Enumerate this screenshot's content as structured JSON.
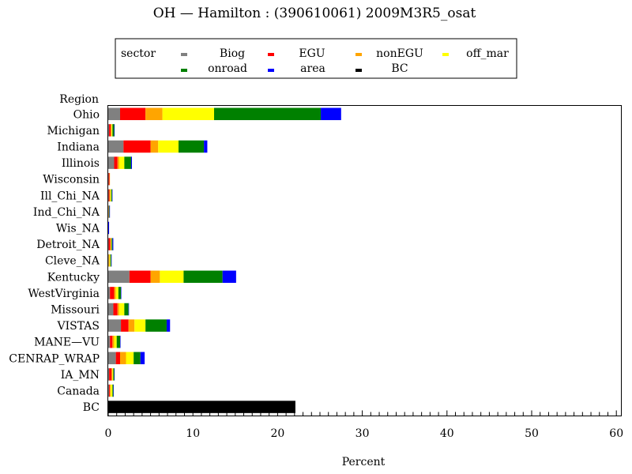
{
  "chart_data": {
    "type": "bar",
    "orientation": "horizontal",
    "stacked": true,
    "title": "OH  —  Hamilton  :  (390610061)  2009M3R5_osat",
    "xlabel": "Percent",
    "ylabel": "Region",
    "xlim": [
      0,
      60
    ],
    "xticks": [
      0,
      10,
      20,
      30,
      40,
      50,
      60
    ],
    "grid": false,
    "legend_title": "sector",
    "legend_position": "top-center",
    "categories": [
      "Ohio",
      "Michigan",
      "Indiana",
      "Illinois",
      "Wisconsin",
      "Ill_Chi_NA",
      "Ind_Chi_NA",
      "Wis_NA",
      "Detroit_NA",
      "Cleve_NA",
      "Kentucky",
      "WestVirginia",
      "Missouri",
      "VISTAS",
      "MANE—VU",
      "CENRAP_WRAP",
      "IA_MN",
      "Canada",
      "BC"
    ],
    "series": [
      {
        "name": "Biog",
        "color": "#808080",
        "values": [
          1.4,
          0.1,
          1.8,
          0.7,
          0.05,
          0.05,
          0.05,
          0.0,
          0.05,
          0.05,
          2.5,
          0.2,
          0.6,
          1.5,
          0.2,
          0.9,
          0.1,
          0.1,
          0.0
        ]
      },
      {
        "name": "EGU",
        "color": "#ff0000",
        "values": [
          3.0,
          0.2,
          3.2,
          0.4,
          0.1,
          0.1,
          0.0,
          0.0,
          0.2,
          0.0,
          2.5,
          0.5,
          0.5,
          0.9,
          0.3,
          0.5,
          0.3,
          0.1,
          0.0
        ]
      },
      {
        "name": "nonEGU",
        "color": "#ffa500",
        "values": [
          2.0,
          0.1,
          0.9,
          0.2,
          0.05,
          0.1,
          0.05,
          0.0,
          0.1,
          0.1,
          1.1,
          0.2,
          0.2,
          0.7,
          0.2,
          0.7,
          0.1,
          0.1,
          0.0
        ]
      },
      {
        "name": "off_mar",
        "color": "#ffff00",
        "values": [
          6.1,
          0.1,
          2.4,
          0.6,
          0.0,
          0.1,
          0.0,
          0.0,
          0.05,
          0.1,
          2.8,
          0.3,
          0.6,
          1.3,
          0.3,
          0.9,
          0.1,
          0.2,
          0.0
        ]
      },
      {
        "name": "onroad",
        "color": "#008000",
        "values": [
          12.6,
          0.2,
          3.0,
          0.8,
          0.0,
          0.1,
          0.05,
          0.0,
          0.1,
          0.1,
          4.6,
          0.3,
          0.5,
          2.5,
          0.4,
          0.8,
          0.1,
          0.1,
          0.0
        ]
      },
      {
        "name": "area",
        "color": "#0000ff",
        "values": [
          2.4,
          0.05,
          0.4,
          0.1,
          0.0,
          0.05,
          0.05,
          0.1,
          0.1,
          0.05,
          1.6,
          0.05,
          0.05,
          0.4,
          0.05,
          0.5,
          0.05,
          0.05,
          0.0
        ]
      },
      {
        "name": "BC",
        "color": "#000000",
        "values": [
          0,
          0,
          0,
          0,
          0,
          0,
          0,
          0,
          0,
          0,
          0,
          0,
          0,
          0,
          0,
          0,
          0,
          0,
          22.1
        ]
      }
    ]
  }
}
